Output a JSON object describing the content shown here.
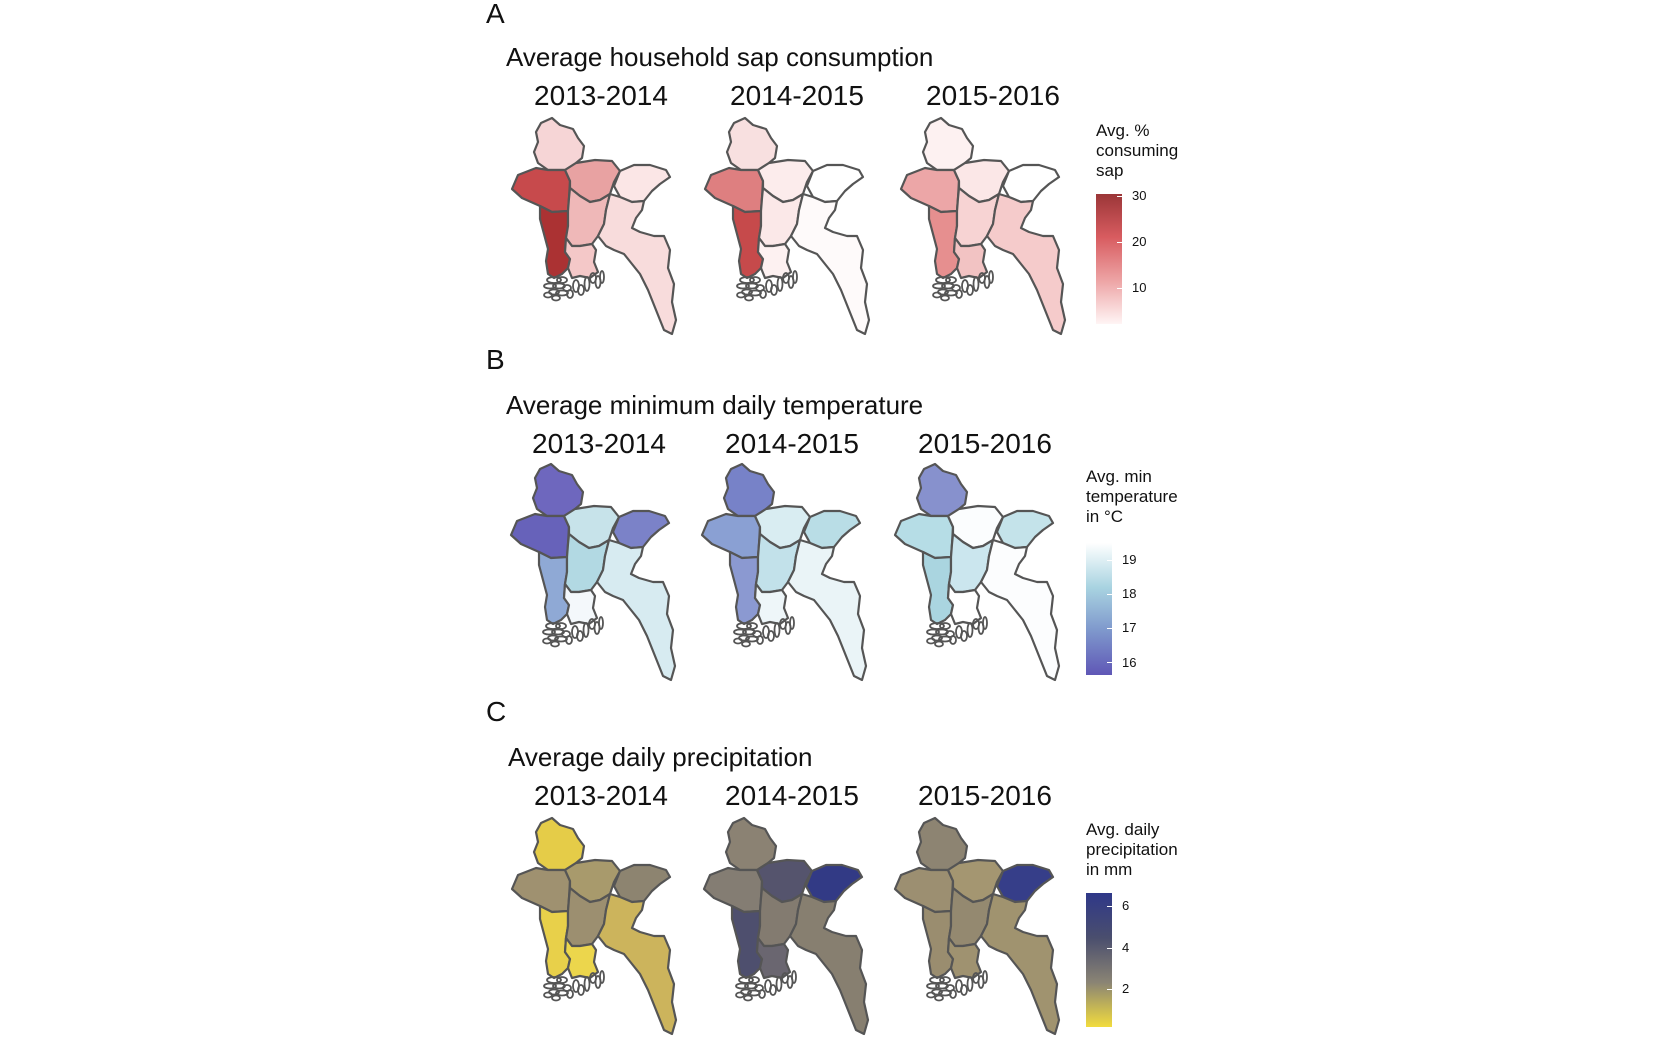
{
  "figure": {
    "panels": [
      {
        "letter": "A",
        "title": "Average household sap consumption",
        "years": [
          "2013-2014",
          "2014-2015",
          "2015-2016"
        ],
        "legend": {
          "title_lines": [
            "Avg. %",
            "consuming",
            "sap"
          ],
          "ticks": [
            "30",
            "20",
            "10"
          ],
          "gradient": [
            "#9b3638",
            "#d85c60",
            "#eda4a5",
            "#fff5f5"
          ]
        },
        "maps": [
          {
            "fills": [
              "#f6d5d6",
              "#c74a4c",
              "#e8a2a2",
              "#fbe6e6",
              "#ab3233",
              "#efb8b8",
              "#f4c8c8",
              "#f8dcdc"
            ]
          },
          {
            "fills": [
              "#f8e0e0",
              "#de7f80",
              "#fcecec",
              "#ffffff",
              "#c64a4b",
              "#fbe8e8",
              "#fdf1f1",
              "#fefafa"
            ]
          },
          {
            "fills": [
              "#fdf1f1",
              "#eca6a7",
              "#fbe7e7",
              "#ffffff",
              "#e68f8f",
              "#f7d3d3",
              "#f2c3c3",
              "#f5cbcb"
            ]
          }
        ]
      },
      {
        "letter": "B",
        "title": "Average minimum daily temperature",
        "years": [
          "2013-2014",
          "2014-2015",
          "2015-2016"
        ],
        "legend": {
          "title_lines": [
            "Avg. min",
            "temperature",
            "in °C"
          ],
          "ticks": [
            "19",
            "18",
            "17",
            "16"
          ],
          "gradient": [
            "#ffffff",
            "#a9d4e1",
            "#7e97cc",
            "#5f57b6"
          ]
        },
        "maps": [
          {
            "fills": [
              "#6e67be",
              "#6762ba",
              "#c7e3ea",
              "#7b82c8",
              "#8fa9d5",
              "#b2d9e3",
              "#f4f8fb",
              "#d7ebf1"
            ]
          },
          {
            "fills": [
              "#7782c8",
              "#8aa0d3",
              "#d9edf2",
              "#b9dde6",
              "#8b99d1",
              "#c2e1ea",
              "#eef6f9",
              "#eaf4f7"
            ]
          },
          {
            "fills": [
              "#8791cd",
              "#b6dde6",
              "#fbfdfe",
              "#c4e3ea",
              "#aad5e0",
              "#cbe6ee",
              "#ffffff",
              "#fcfdfe"
            ]
          }
        ]
      },
      {
        "letter": "C",
        "title": "Average daily precipitation",
        "years": [
          "2013-2014",
          "2014-2015",
          "2015-2016"
        ],
        "legend": {
          "title_lines": [
            "Avg. daily",
            "precipitation",
            "in mm"
          ],
          "ticks": [
            "6",
            "4",
            "2"
          ],
          "gradient": [
            "#2f3889",
            "#4a4e6e",
            "#8a8474",
            "#f2dc3e"
          ]
        },
        "maps": [
          {
            "fills": [
              "#e5cc48",
              "#9f9170",
              "#a89a6c",
              "#8d8470",
              "#e8d04a",
              "#9c8f70",
              "#ecd64c",
              "#ccb45c"
            ]
          },
          {
            "fills": [
              "#8b8273",
              "#847d73",
              "#55546d",
              "#323a85",
              "#4e4f6e",
              "#837b70",
              "#6a6670",
              "#877f70"
            ]
          },
          {
            "fills": [
              "#8d8472",
              "#9c8f71",
              "#a49671",
              "#363e89",
              "#9a8d6f",
              "#948970",
              "#9f9270",
              "#a0936f"
            ]
          }
        ]
      }
    ]
  }
}
